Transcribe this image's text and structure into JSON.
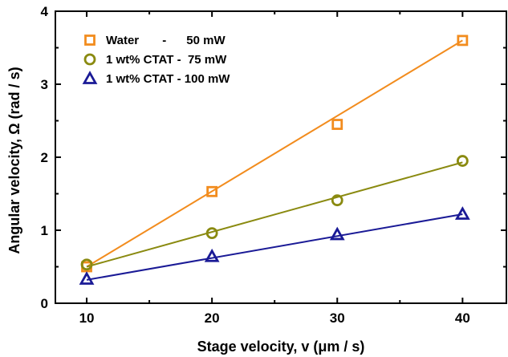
{
  "chart_data": {
    "type": "scatter",
    "xlabel": "Stage velocity, v (μm / s)",
    "ylabel": "Angular velocity, Ω (rad / s)",
    "xlim": [
      7.5,
      43.5
    ],
    "ylim": [
      0,
      4
    ],
    "xticks": [
      10,
      20,
      30,
      40
    ],
    "yticks": [
      0,
      1,
      2,
      3,
      4
    ],
    "x_tick_labels": [
      "10",
      "20",
      "30",
      "40"
    ],
    "y_tick_labels": [
      "0",
      "1",
      "2",
      "3",
      "4"
    ],
    "grid": false,
    "legend_position": "top-left",
    "series": [
      {
        "name": "Water       -      50 mW",
        "marker": "square",
        "color": "#f28c1e",
        "x": [
          10,
          20,
          30,
          40
        ],
        "y": [
          0.5,
          1.53,
          2.45,
          3.6
        ],
        "fit": [
          0.5,
          3.6
        ]
      },
      {
        "name": "1 wt% CTAT -  75 mW",
        "marker": "circle",
        "color": "#8a8a10",
        "x": [
          10,
          20,
          30,
          40
        ],
        "y": [
          0.53,
          0.96,
          1.41,
          1.95
        ],
        "fit": [
          0.5,
          1.93
        ]
      },
      {
        "name": "1 wt% CTAT - 100 mW",
        "marker": "triangle",
        "color": "#1a1a96",
        "x": [
          10,
          20,
          30,
          40
        ],
        "y": [
          0.33,
          0.64,
          0.94,
          1.22
        ],
        "fit": [
          0.32,
          1.22
        ]
      }
    ]
  }
}
